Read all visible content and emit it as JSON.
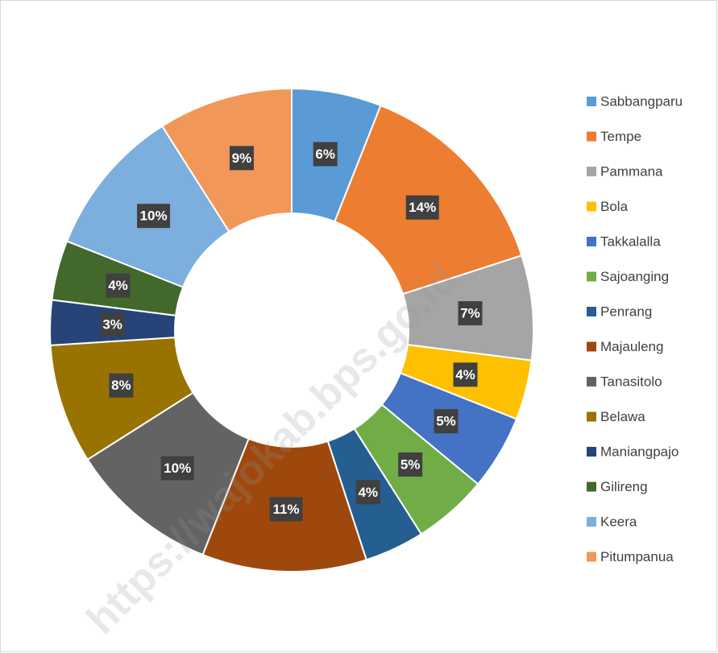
{
  "chart_data": {
    "type": "donut",
    "categories": [
      "Sabbangparu",
      "Tempe",
      "Pammana",
      "Bola",
      "Takkalalla",
      "Sajoanging",
      "Penrang",
      "Majauleng",
      "Tanasitolo",
      "Belawa",
      "Maniangpajo",
      "Gilireng",
      "Keera",
      "Pitumpanua"
    ],
    "values": [
      6,
      14,
      7,
      4,
      5,
      5,
      4,
      11,
      10,
      8,
      3,
      4,
      10,
      9
    ],
    "value_labels": [
      "6%",
      "14%",
      "7%",
      "4%",
      "5%",
      "5%",
      "4%",
      "11%",
      "10%",
      "8%",
      "3%",
      "4%",
      "10%",
      "9%"
    ],
    "colors": [
      "#5b9bd5",
      "#ed7d31",
      "#a5a5a5",
      "#ffc000",
      "#4472c4",
      "#70ad47",
      "#255e91",
      "#9e480e",
      "#636363",
      "#997300",
      "#264478",
      "#43682b",
      "#7cafdd",
      "#f1975a"
    ],
    "legend": "right",
    "watermark": "https://wajokab.bps.go.id"
  }
}
